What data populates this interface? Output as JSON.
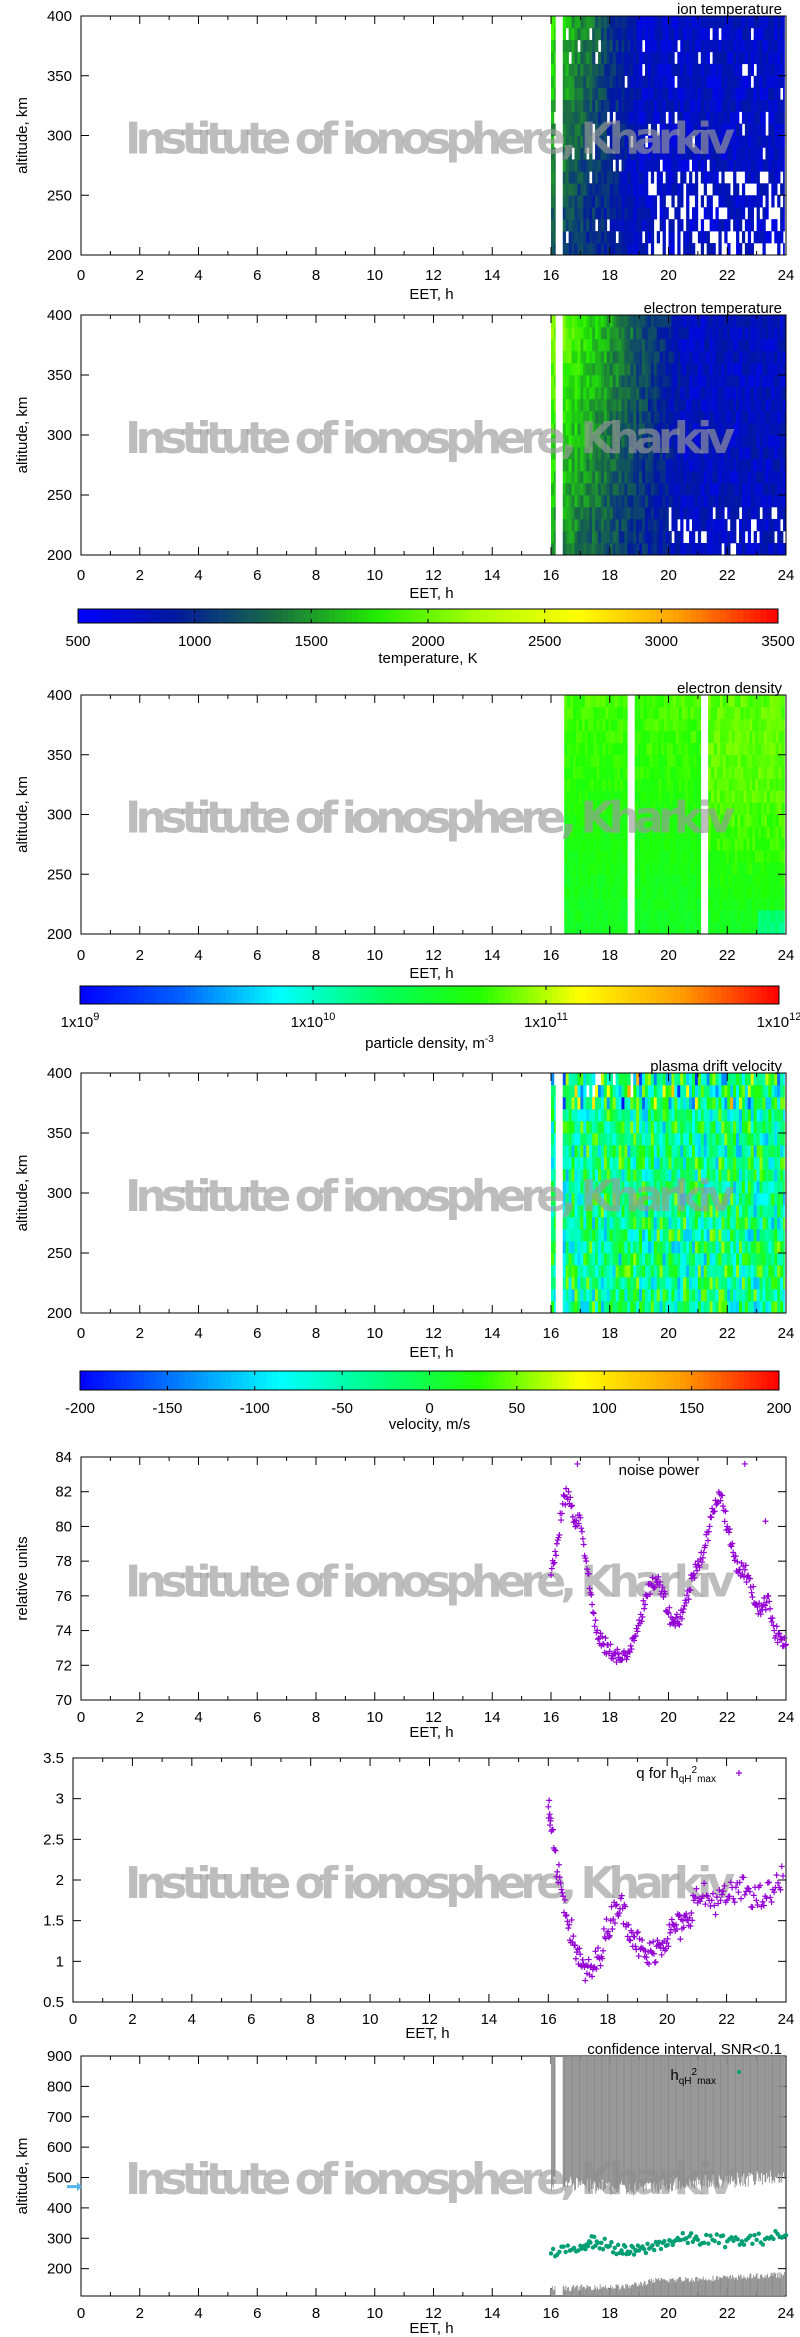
{
  "watermark": "Institute of ionosphere, Kharkiv",
  "chart_data": [
    {
      "type": "heatmap",
      "title": "ion temperature",
      "xlabel": "EET, h",
      "ylabel": "altitude, km",
      "xlim": [
        0,
        24
      ],
      "ylim": [
        200,
        400
      ],
      "xticks": [
        "0",
        "2",
        "4",
        "6",
        "8",
        "10",
        "12",
        "14",
        "16",
        "18",
        "20",
        "22",
        "24"
      ],
      "yticks": [
        "200",
        "250",
        "300",
        "350",
        "400"
      ],
      "value_range": [
        500,
        3500
      ],
      "colorbar": "temperature",
      "data_intervals_h": [
        [
          16.0,
          16.15
        ],
        [
          16.4,
          23.95
        ]
      ],
      "typical_values_K": {
        "16.5-18h upper": 1800,
        "after 19h": 800
      }
    },
    {
      "type": "heatmap",
      "title": "electron temperature",
      "xlabel": "EET, h",
      "ylabel": "altitude, km",
      "xlim": [
        0,
        24
      ],
      "ylim": [
        200,
        400
      ],
      "xticks": [
        "0",
        "2",
        "4",
        "6",
        "8",
        "10",
        "12",
        "14",
        "16",
        "18",
        "20",
        "22",
        "24"
      ],
      "yticks": [
        "200",
        "250",
        "300",
        "350",
        "400"
      ],
      "value_range": [
        500,
        3500
      ],
      "colorbar": "temperature",
      "data_intervals_h": [
        [
          16.0,
          16.15
        ],
        [
          16.4,
          24.0
        ]
      ],
      "typical_values_K": {
        "16-18h upper": 2100,
        "after 20h": 800
      }
    },
    {
      "type": "colorbar",
      "label": "temperature, K",
      "range": [
        500,
        3500
      ],
      "ticks": [
        "500",
        "1000",
        "1500",
        "2000",
        "2500",
        "3000",
        "3500"
      ],
      "colors": [
        "#0000ff",
        "#001a9c",
        "#1a7040",
        "#22ee00",
        "#aaff00",
        "#ffff00",
        "#ffa000",
        "#ff0000"
      ]
    },
    {
      "type": "heatmap",
      "title": "electron density",
      "xlabel": "EET, h",
      "ylabel": "altitude, km",
      "xlim": [
        0,
        24
      ],
      "ylim": [
        200,
        400
      ],
      "xticks": [
        "0",
        "2",
        "4",
        "6",
        "8",
        "10",
        "12",
        "14",
        "16",
        "18",
        "20",
        "22",
        "24"
      ],
      "yticks": [
        "200",
        "250",
        "300",
        "350",
        "400"
      ],
      "value_range": [
        1000000000.0,
        1000000000000.0
      ],
      "scale": "log",
      "colorbar": "particle density",
      "data_intervals_h": [
        [
          16.45,
          18.6
        ],
        [
          18.85,
          21.1
        ],
        [
          21.35,
          23.95
        ]
      ],
      "typical_values_m3": 50000000000.0
    },
    {
      "type": "colorbar",
      "label": {
        "text": "particle density, m",
        "exp": "-3"
      },
      "range": [
        1000000000.0,
        1000000000000.0
      ],
      "scale": "log",
      "ticks": [
        {
          "base": "1x10",
          "exp": "9"
        },
        {
          "base": "1x10",
          "exp": "10"
        },
        {
          "base": "1x10",
          "exp": "11"
        },
        {
          "base": "1x10",
          "exp": "12"
        }
      ],
      "colors": [
        "#0000ff",
        "#0060ff",
        "#00ffff",
        "#00ff60",
        "#22ff00",
        "#ffff00",
        "#ffa000",
        "#ff0000"
      ]
    },
    {
      "type": "heatmap",
      "title": "plasma drift velocity",
      "xlabel": "EET, h",
      "ylabel": "altitude, km",
      "xlim": [
        0,
        24
      ],
      "ylim": [
        200,
        400
      ],
      "xticks": [
        "0",
        "2",
        "4",
        "6",
        "8",
        "10",
        "12",
        "14",
        "16",
        "18",
        "20",
        "22",
        "24"
      ],
      "yticks": [
        "200",
        "250",
        "300",
        "350",
        "400"
      ],
      "value_range": [
        -200,
        200
      ],
      "colorbar": "velocity",
      "data_intervals_h": [
        [
          16.0,
          16.15
        ],
        [
          16.4,
          23.95
        ]
      ],
      "typical_values_ms": [
        -60,
        40
      ]
    },
    {
      "type": "colorbar",
      "label": "velocity, m/s",
      "range": [
        -200,
        200
      ],
      "ticks": [
        "-200",
        "-150",
        "-100",
        "-50",
        "0",
        "50",
        "100",
        "150",
        "200"
      ],
      "colors": [
        "#0000ff",
        "#0080ff",
        "#00ffff",
        "#00ff80",
        "#22ff00",
        "#ffff00",
        "#ffa000",
        "#ff0000"
      ]
    },
    {
      "type": "scatter",
      "title": "noise power",
      "xlabel": "EET, h",
      "ylabel": "relative units",
      "xlim": [
        0,
        24
      ],
      "ylim": [
        70,
        84
      ],
      "xticks": [
        "0",
        "2",
        "4",
        "6",
        "8",
        "10",
        "12",
        "14",
        "16",
        "18",
        "20",
        "22",
        "24"
      ],
      "yticks": [
        "70",
        "72",
        "74",
        "76",
        "78",
        "80",
        "82",
        "84"
      ],
      "marker": "+",
      "color": "#9400d3",
      "x": [
        16.0,
        16.2,
        16.4,
        16.6,
        16.8,
        17.0,
        17.2,
        17.4,
        17.6,
        17.8,
        18.0,
        18.2,
        18.4,
        18.6,
        18.8,
        19.0,
        19.2,
        19.4,
        19.6,
        19.8,
        20.0,
        20.2,
        20.4,
        20.6,
        20.8,
        21.0,
        21.2,
        21.4,
        21.6,
        21.8,
        22.0,
        22.2,
        22.4,
        22.6,
        22.8,
        23.0,
        23.2,
        23.4,
        23.6,
        23.8,
        24.0,
        16.9,
        22.6,
        23.3
      ],
      "y": [
        77.2,
        79,
        81.3,
        82,
        80.3,
        80.5,
        78,
        75.5,
        73.5,
        73.2,
        72.8,
        72.7,
        72.3,
        72.5,
        73.6,
        74.6,
        75.5,
        76.7,
        76.8,
        76.5,
        75,
        74.5,
        74.8,
        75.6,
        77,
        78,
        78.5,
        80,
        81.5,
        81.8,
        80,
        78.5,
        77.5,
        77.5,
        76.5,
        75.5,
        75.2,
        76,
        74,
        73.5,
        73.2,
        83.6,
        83.6,
        80.3
      ]
    },
    {
      "type": "scatter",
      "legend": {
        "text": "q for h",
        "sub": "qH",
        "sup": "2",
        "sub2": "max"
      },
      "legend_position": "top-right",
      "xlabel": "EET, h",
      "ylabel": "",
      "xlim": [
        0,
        24
      ],
      "ylim": [
        0.5,
        3.5
      ],
      "xticks": [
        "0",
        "2",
        "4",
        "6",
        "8",
        "10",
        "12",
        "14",
        "16",
        "18",
        "20",
        "22",
        "24"
      ],
      "yticks": [
        "0.5",
        "1",
        "1.5",
        "2",
        "2.5",
        "3",
        "3.5"
      ],
      "marker": "+",
      "color": "#9400d3",
      "x": [
        16.0,
        16.1,
        16.3,
        16.5,
        16.7,
        16.9,
        17.1,
        17.3,
        17.5,
        17.7,
        17.9,
        18.1,
        18.3,
        18.5,
        18.7,
        18.9,
        19.1,
        19.3,
        19.5,
        19.7,
        19.9,
        20.1,
        20.3,
        20.5,
        20.7,
        20.9,
        21.2,
        21.5,
        21.8,
        22.1,
        22.4,
        22.7,
        23.0,
        23.3,
        23.6,
        23.9
      ],
      "y": [
        2.9,
        2.6,
        2.1,
        1.8,
        1.45,
        1.2,
        0.95,
        0.85,
        0.9,
        1.05,
        1.3,
        1.5,
        1.7,
        1.65,
        1.45,
        1.3,
        1.15,
        1.05,
        1.1,
        1.2,
        1.25,
        1.35,
        1.45,
        1.4,
        1.5,
        1.75,
        1.8,
        1.75,
        1.75,
        1.8,
        1.85,
        1.9,
        1.75,
        1.8,
        1.85,
        2.05
      ]
    },
    {
      "type": "scatter",
      "title": "confidence interval, SNR<0.1",
      "legend": {
        "text": "h",
        "sub": "qH",
        "sup": "2",
        "sub2": "max"
      },
      "legend_position": "top-right",
      "xlabel": "EET, h",
      "ylabel": "altitude, km",
      "xlim": [
        0,
        24
      ],
      "ylim": [
        110,
        900
      ],
      "xticks": [
        "0",
        "2",
        "4",
        "6",
        "8",
        "10",
        "12",
        "14",
        "16",
        "18",
        "20",
        "22",
        "24"
      ],
      "yticks": [
        "200",
        "300",
        "400",
        "500",
        "600",
        "700",
        "800",
        "900"
      ],
      "marker": "dot",
      "color": "#009e73",
      "band_color": "#8c8c8c",
      "marker_arrow_color": "#56b4e9",
      "marker_arrow_altitude_km": 470,
      "x": [
        16.0,
        16.5,
        17.0,
        17.3,
        17.6,
        18.0,
        18.4,
        18.7,
        19.0,
        19.4,
        19.8,
        20.2,
        20.6,
        21.0,
        21.5,
        22.0,
        22.5,
        23.0,
        23.5,
        24.0
      ],
      "y": [
        250,
        255,
        275,
        290,
        285,
        275,
        260,
        255,
        260,
        270,
        285,
        290,
        300,
        295,
        295,
        290,
        290,
        295,
        305,
        310
      ],
      "confidence_upper_edge_km": [
        480,
        470,
        460,
        470,
        480,
        490,
        500
      ],
      "confidence_lower_edge_km": [
        135,
        140,
        140,
        160,
        165,
        170,
        180
      ],
      "confidence_edge_x_h": [
        16.4,
        17.5,
        18.5,
        19.5,
        20.5,
        22.0,
        23.9
      ]
    }
  ]
}
